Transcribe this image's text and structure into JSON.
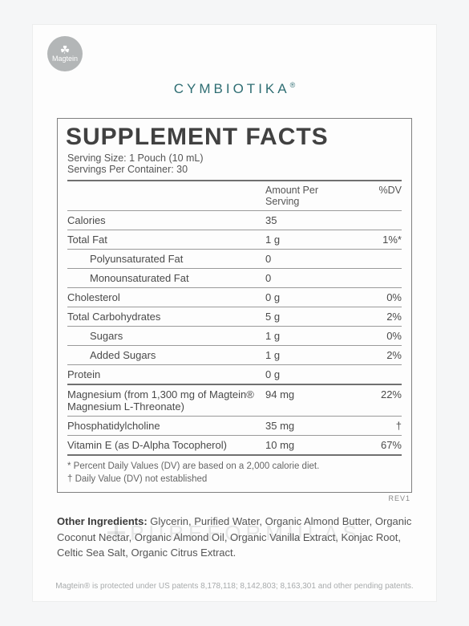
{
  "badge": {
    "name": "Magtein"
  },
  "brand": {
    "name": "CYMBIOTIKA",
    "reg": "®"
  },
  "panel": {
    "title": "SUPPLEMENT FACTS",
    "serving_size_label": "Serving Size: 1 Pouch (10 mL)",
    "servings_per_label": "Servings Per Container: 30",
    "header_amount": "Amount Per Serving",
    "header_dv": "%DV",
    "rows_top": [
      {
        "label": "Calories",
        "amount": "35",
        "dv": ""
      },
      {
        "label": "Total Fat",
        "amount": "1 g",
        "dv": "1%*"
      },
      {
        "label": "Polyunsaturated Fat",
        "amount": "0",
        "dv": "",
        "sub": true
      },
      {
        "label": "Monounsaturated Fat",
        "amount": "0",
        "dv": "",
        "sub": true
      },
      {
        "label": "Cholesterol",
        "amount": "0 g",
        "dv": "0%"
      },
      {
        "label": "Total Carbohydrates",
        "amount": "5 g",
        "dv": "2%"
      },
      {
        "label": "Sugars",
        "amount": "1 g",
        "dv": "0%",
        "sub": true
      },
      {
        "label": "Added Sugars",
        "amount": "1 g",
        "dv": "2%",
        "sub": true
      },
      {
        "label": "Protein",
        "amount": "0 g",
        "dv": ""
      }
    ],
    "rows_bottom": [
      {
        "label": "Magnesium (from 1,300 mg of Magtein® Magnesium L-Threonate)",
        "amount": "94 mg",
        "dv": "22%"
      },
      {
        "label": "Phosphatidylcholine",
        "amount": "35 mg",
        "dv": "†"
      },
      {
        "label": "Vitamin E (as D-Alpha Tocopherol)",
        "amount": "10 mg",
        "dv": "67%"
      }
    ],
    "footnote1": "* Percent Daily Values (DV) are based on a 2,000 calorie diet.",
    "footnote2": "† Daily Value (DV) not established",
    "rev": "REV1"
  },
  "other": {
    "label": "Other Ingredients:",
    "text": " Glycerin, Purified Water, Organic Almond Butter, Organic Coconut Nectar, Organic Almond Oil, Organic Vanilla Extract, Konjac Root, Celtic Sea Salt, Organic Citrus Extract."
  },
  "watermark": "PUREFORMULAS",
  "patent": "Magtein® is protected under US patents 8,178,118; 8,142,803; 8,163,301 and other pending patents.",
  "colors": {
    "page_bg": "#f5f6f7",
    "card_bg": "#fdfdfd",
    "brand": "#2f6e73",
    "rule": "#707070",
    "text": "#4a4a4a"
  }
}
